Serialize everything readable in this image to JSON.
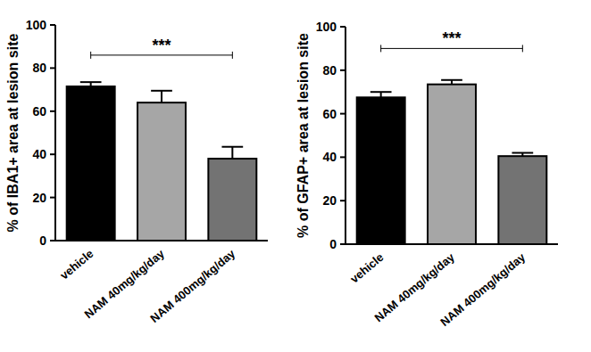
{
  "chart_data": [
    {
      "type": "bar",
      "y_label": "% of IBA1+ area at lesion site",
      "categories": [
        "vehicle",
        "NAM 40mg/kg/day",
        "NAM 400mg/kg/day"
      ],
      "values": [
        71.5,
        64,
        38
      ],
      "errors": [
        2,
        5.5,
        5.5
      ],
      "colors": [
        "#000000",
        "#a6a6a6",
        "#737373"
      ],
      "ylim": [
        0,
        100
      ],
      "yticks": [
        0,
        20,
        40,
        60,
        80,
        100
      ],
      "annotations": [
        {
          "text": "***",
          "y": 86,
          "from": "vehicle",
          "to": "NAM 400mg/kg/day"
        }
      ]
    },
    {
      "type": "bar",
      "y_label": "% of GFAP+ area at lesion site",
      "categories": [
        "vehicle",
        "NAM 40mg/kg/day",
        "NAM 400mg/kg/day"
      ],
      "values": [
        67.5,
        73.5,
        40.5
      ],
      "errors": [
        2.5,
        2,
        1.5
      ],
      "colors": [
        "#000000",
        "#a6a6a6",
        "#737373"
      ],
      "ylim": [
        0,
        100
      ],
      "yticks": [
        0,
        20,
        40,
        60,
        80,
        100
      ],
      "annotations": [
        {
          "text": "***",
          "y": 90,
          "from": "vehicle",
          "to": "NAM 400mg/kg/day"
        }
      ]
    }
  ]
}
